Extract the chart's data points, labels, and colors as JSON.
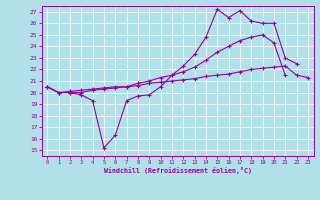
{
  "xlabel": "Windchill (Refroidissement éolien,°C)",
  "bg_color": "#b2e0e8",
  "grid_color": "#ffffff",
  "line_color": "#990099",
  "x_ticks": [
    0,
    1,
    2,
    3,
    4,
    5,
    6,
    7,
    8,
    9,
    10,
    11,
    12,
    13,
    14,
    15,
    16,
    17,
    18,
    19,
    20,
    21,
    22,
    23
  ],
  "y_ticks": [
    15,
    16,
    17,
    18,
    19,
    20,
    21,
    22,
    23,
    24,
    25,
    26,
    27
  ],
  "xlim": [
    -0.5,
    23.5
  ],
  "ylim": [
    14.5,
    27.5
  ],
  "line1_x": [
    0,
    1,
    2,
    3,
    4,
    5,
    6,
    7,
    8,
    9,
    10,
    11,
    12,
    13,
    14,
    15,
    16,
    17,
    18,
    19,
    20,
    21,
    22
  ],
  "line1_y": [
    20.5,
    20.0,
    20.0,
    19.8,
    19.3,
    15.2,
    16.3,
    19.3,
    19.7,
    19.8,
    20.5,
    21.5,
    22.3,
    23.3,
    24.8,
    27.2,
    26.5,
    27.1,
    26.2,
    26.0,
    26.0,
    23.0,
    22.5
  ],
  "line2_x": [
    0,
    1,
    2,
    3,
    4,
    5,
    6,
    7,
    8,
    9,
    10,
    11,
    12,
    13,
    14,
    15,
    16,
    17,
    18,
    19,
    20,
    21
  ],
  "line2_y": [
    20.5,
    20.0,
    20.0,
    20.0,
    20.2,
    20.3,
    20.4,
    20.5,
    20.8,
    21.0,
    21.3,
    21.5,
    21.8,
    22.2,
    22.8,
    23.5,
    24.0,
    24.5,
    24.8,
    25.0,
    24.3,
    21.5
  ],
  "line3_x": [
    0,
    1,
    2,
    3,
    4,
    5,
    6,
    7,
    8,
    9,
    10,
    11,
    12,
    13,
    14,
    15,
    16,
    17,
    18,
    19,
    20,
    21,
    22,
    23
  ],
  "line3_y": [
    20.5,
    20.0,
    20.1,
    20.2,
    20.3,
    20.4,
    20.5,
    20.5,
    20.6,
    20.8,
    20.9,
    21.0,
    21.1,
    21.2,
    21.4,
    21.5,
    21.6,
    21.8,
    22.0,
    22.1,
    22.2,
    22.3,
    21.5,
    21.3
  ]
}
